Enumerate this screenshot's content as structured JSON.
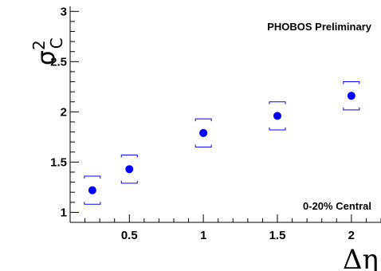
{
  "chart_data": {
    "type": "scatter",
    "title": "",
    "xlabel": "Δη",
    "ylabel": "σ",
    "ylabel_sup": "2",
    "ylabel_sub": "C",
    "xlim": [
      0.1,
      2.2
    ],
    "ylim": [
      0.9,
      3.05
    ],
    "x_ticks": [
      "0.5",
      "1",
      "1.5",
      "2"
    ],
    "y_ticks": [
      "1",
      "1.5",
      "2",
      "2.5",
      "3"
    ],
    "grid": false,
    "annotations": [
      "PHOBOS Preliminary",
      "0-20% Central"
    ],
    "colors": {
      "points": "#0000ff",
      "systematics": "#0000ff",
      "axes": "#000000"
    },
    "series": [
      {
        "x": [
          0.25,
          0.5,
          1.0,
          1.5,
          2.0
        ],
        "y": [
          1.22,
          1.43,
          1.79,
          1.96,
          2.16
        ],
        "sys_low": [
          1.08,
          1.29,
          1.65,
          1.82,
          2.02
        ],
        "sys_high": [
          1.36,
          1.57,
          1.93,
          2.1,
          2.3
        ]
      }
    ]
  }
}
